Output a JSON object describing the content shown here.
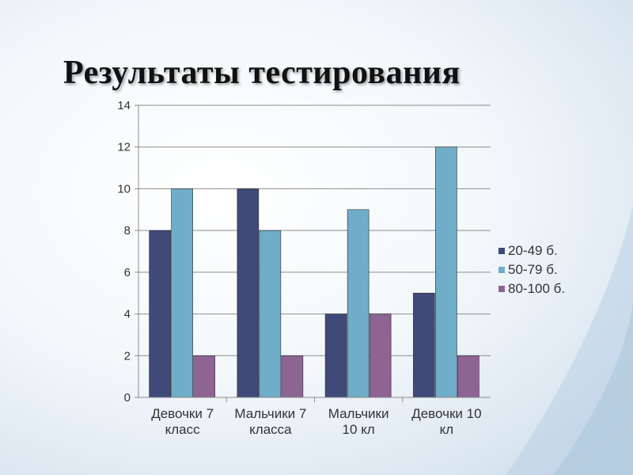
{
  "slide": {
    "title": "Результаты тестирования"
  },
  "colors": {
    "series": [
      "#3f4a78",
      "#6fadc9",
      "#8d6494"
    ],
    "gridline": "#8c8c8c",
    "axis": "#8c8c8c"
  },
  "chart_data": {
    "type": "bar",
    "categories": [
      [
        "Девочки 7",
        "класс"
      ],
      [
        "Мальчики 7",
        "класса"
      ],
      [
        "Мальчики",
        "10 кл"
      ],
      [
        "Девочки 10",
        "кл"
      ]
    ],
    "series": [
      {
        "name": "20-49 б.",
        "values": [
          8,
          10,
          4,
          5
        ]
      },
      {
        "name": "50-79 б.",
        "values": [
          10,
          8,
          9,
          12
        ]
      },
      {
        "name": "80-100 б.",
        "values": [
          2,
          2,
          4,
          2
        ]
      }
    ],
    "ylim": [
      0,
      14
    ],
    "yticks": [
      0,
      2,
      4,
      6,
      8,
      10,
      12,
      14
    ],
    "grid": true,
    "legend": "right"
  }
}
